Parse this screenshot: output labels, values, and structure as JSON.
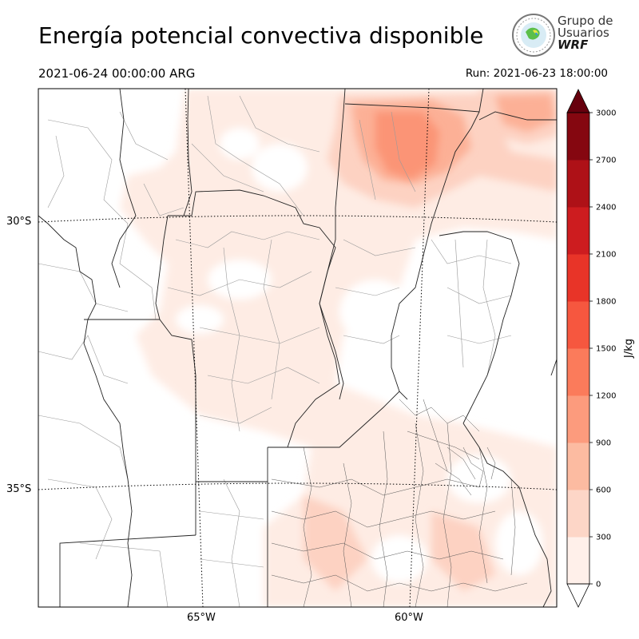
{
  "header": {
    "title": "Energía potencial convectiva disponible",
    "valid_time": "2021-06-24 00:00:00 ARG",
    "run_time": "Run: 2021-06-23 18:00:00"
  },
  "logo": {
    "line1": "Grupo de",
    "line2": "Usuarios",
    "line3": "WRF"
  },
  "map": {
    "variable": "CAPE",
    "lat_labels": [
      "30°S",
      "35°S"
    ],
    "lon_labels": [
      "65°W",
      "60°W"
    ]
  },
  "colorbar": {
    "unit": "J/kg",
    "ticks": [
      0,
      300,
      600,
      900,
      1200,
      1500,
      1800,
      2100,
      2400,
      2700,
      3000
    ],
    "colors": [
      "#fff0ea",
      "#fdd6c7",
      "#fcbba1",
      "#fc9b7d",
      "#fb7b5b",
      "#f6573f",
      "#e83428",
      "#cd1c1f",
      "#ae1117",
      "#850710"
    ],
    "extend_max_color": "#67000d",
    "extend_min_color": "#ffffff"
  }
}
